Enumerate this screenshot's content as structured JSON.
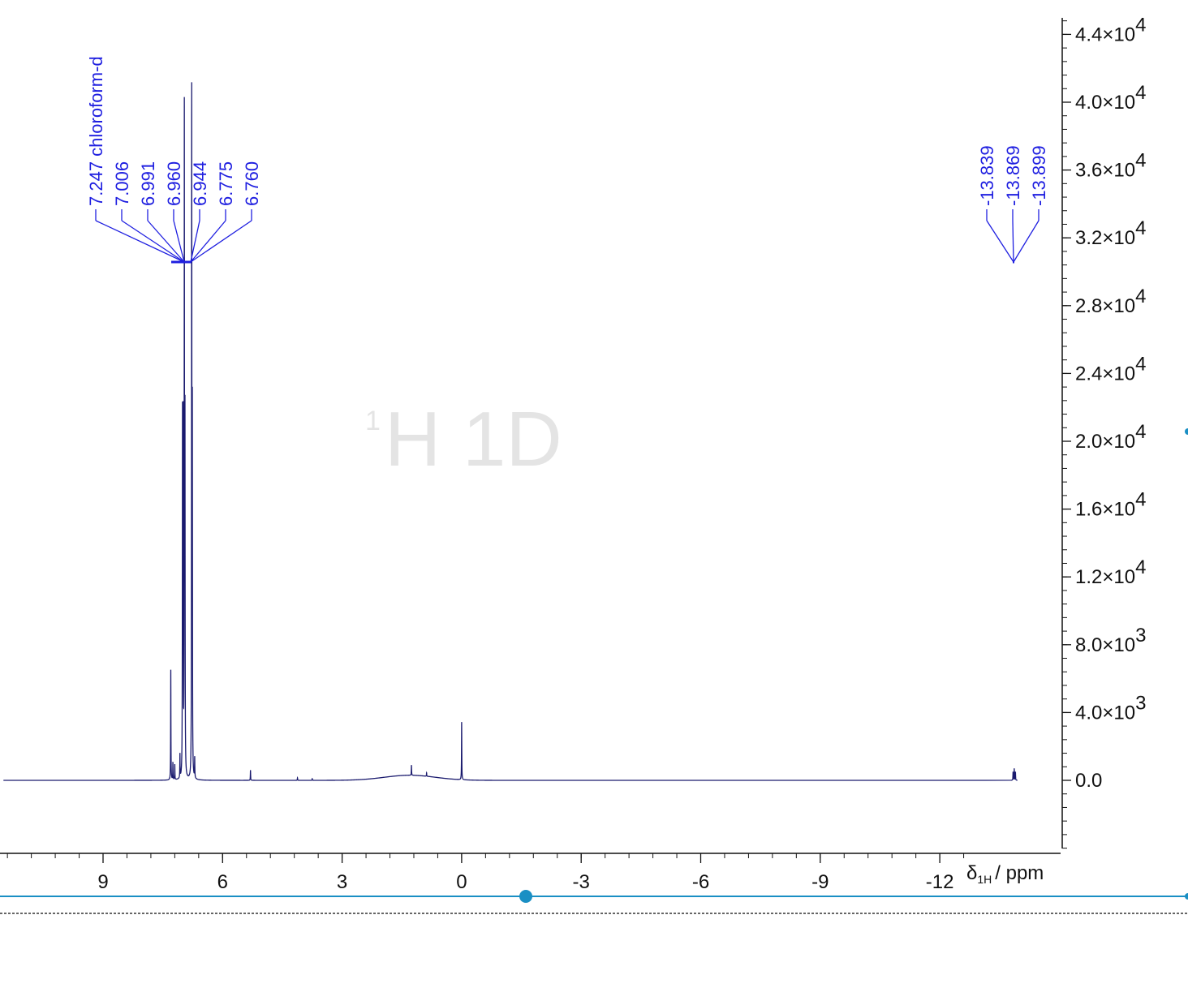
{
  "watermark": {
    "nucleus_mass": "1",
    "text": "H 1D"
  },
  "chart_data": {
    "type": "line",
    "title": "",
    "xlabel": {
      "symbol": "δ",
      "subscript": "1H",
      "unit": "/ ppm"
    },
    "ylabel": "",
    "xlim": [
      11.5,
      -12.5
    ],
    "ylim": [
      -4200,
      45000
    ],
    "x_reversed": true,
    "x_ticks": [
      "9",
      "6",
      "3",
      "0",
      "-3",
      "-6",
      "-9",
      "-12"
    ],
    "x_tick_values": [
      9,
      6,
      3,
      0,
      -3,
      -6,
      -9,
      -12
    ],
    "y_ticks": [
      {
        "value": 44000,
        "mantissa": "4.4×10",
        "exp": "4"
      },
      {
        "value": 40000,
        "mantissa": "4.0×10",
        "exp": "4"
      },
      {
        "value": 36000,
        "mantissa": "3.6×10",
        "exp": "4"
      },
      {
        "value": 32000,
        "mantissa": "3.2×10",
        "exp": "4"
      },
      {
        "value": 28000,
        "mantissa": "2.8×10",
        "exp": "4"
      },
      {
        "value": 24000,
        "mantissa": "2.4×10",
        "exp": "4"
      },
      {
        "value": 20000,
        "mantissa": "2.0×10",
        "exp": "4"
      },
      {
        "value": 16000,
        "mantissa": "1.6×10",
        "exp": "4"
      },
      {
        "value": 12000,
        "mantissa": "1.2×10",
        "exp": "4"
      },
      {
        "value": 8000,
        "mantissa": "8.0×10",
        "exp": "3"
      },
      {
        "value": 4000,
        "mantissa": "4.0×10",
        "exp": "3"
      },
      {
        "value": 0,
        "mantissa": "0.0",
        "exp": ""
      }
    ],
    "peaks": [
      {
        "x": 7.3,
        "y": 6500
      },
      {
        "x": 7.247,
        "y": 1000
      },
      {
        "x": 7.2,
        "y": 900
      },
      {
        "x": 7.07,
        "y": 1400
      },
      {
        "x": 7.006,
        "y": 20600
      },
      {
        "x": 6.991,
        "y": 20200
      },
      {
        "x": 6.96,
        "y": 38600
      },
      {
        "x": 6.944,
        "y": 20200
      },
      {
        "x": 6.775,
        "y": 40300
      },
      {
        "x": 6.76,
        "y": 20500
      },
      {
        "x": 6.7,
        "y": 1200
      },
      {
        "x": 5.3,
        "y": 600
      },
      {
        "x": 4.12,
        "y": 150
      },
      {
        "x": 3.75,
        "y": 100
      },
      {
        "x": 1.26,
        "y": 600
      },
      {
        "x": 0.88,
        "y": 200
      },
      {
        "x": 0.0,
        "y": 3400
      },
      {
        "x": -13.839,
        "y": 500
      },
      {
        "x": -13.869,
        "y": 700
      },
      {
        "x": -13.899,
        "y": 500
      }
    ],
    "broad_humps": [
      {
        "x": 1.3,
        "y": 300,
        "width": 0.9
      }
    ],
    "peak_groups": [
      {
        "labels": [
          "7.247 chloroform-d",
          "7.006",
          "6.991",
          "6.960",
          "6.944",
          "6.775",
          "6.760"
        ]
      },
      {
        "labels": [
          "-13.839",
          "-13.869",
          "-13.899"
        ]
      }
    ],
    "colors": {
      "spectrum": "#1a1a6e",
      "labels": "#1f1fe0",
      "cursor": "#1a8fc4",
      "axis": "#111111"
    }
  }
}
